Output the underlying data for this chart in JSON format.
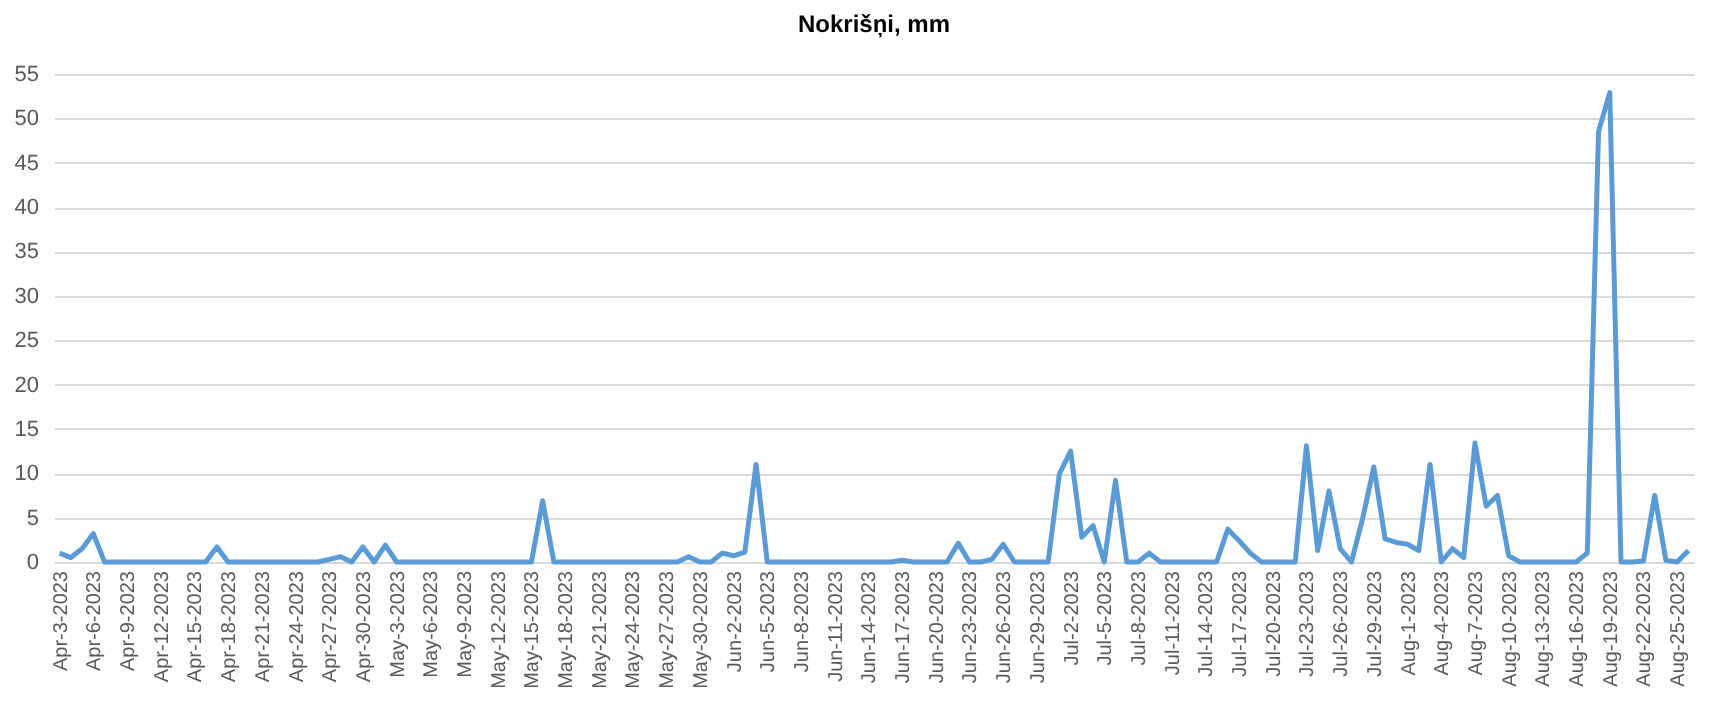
{
  "chart_data": {
    "type": "line",
    "title": "Nokrišņi, mm",
    "categories": [
      "Apr-3-2023",
      null,
      null,
      "Apr-6-2023",
      null,
      null,
      "Apr-9-2023",
      null,
      null,
      "Apr-12-2023",
      null,
      null,
      "Apr-15-2023",
      null,
      null,
      "Apr-18-2023",
      null,
      null,
      "Apr-21-2023",
      null,
      null,
      "Apr-24-2023",
      null,
      null,
      "Apr-27-2023",
      null,
      null,
      "Apr-30-2023",
      null,
      null,
      "May-3-2023",
      null,
      null,
      "May-6-2023",
      null,
      null,
      "May-9-2023",
      null,
      null,
      "May-12-2023",
      null,
      null,
      "May-15-2023",
      null,
      null,
      "May-18-2023",
      null,
      null,
      "May-21-2023",
      null,
      null,
      "May-24-2023",
      null,
      null,
      "May-27-2023",
      null,
      null,
      "May-30-2023",
      null,
      null,
      "Jun-2-2023",
      null,
      null,
      "Jun-5-2023",
      null,
      null,
      "Jun-8-2023",
      null,
      null,
      "Jun-11-2023",
      null,
      null,
      "Jun-14-2023",
      null,
      null,
      "Jun-17-2023",
      null,
      null,
      "Jun-20-2023",
      null,
      null,
      "Jun-23-2023",
      null,
      null,
      "Jun-26-2023",
      null,
      null,
      "Jun-29-2023",
      null,
      null,
      "Jul-2-2023",
      null,
      null,
      "Jul-5-2023",
      null,
      null,
      "Jul-8-2023",
      null,
      null,
      "Jul-11-2023",
      null,
      null,
      "Jul-14-2023",
      null,
      null,
      "Jul-17-2023",
      null,
      null,
      "Jul-20-2023",
      null,
      null,
      "Jul-23-2023",
      null,
      null,
      "Jul-26-2023",
      null,
      null,
      "Jul-29-2023",
      null,
      null,
      "Aug-1-2023",
      null,
      null,
      "Aug-4-2023",
      null,
      null,
      "Aug-7-2023",
      null,
      null,
      "Aug-10-2023",
      null,
      null,
      "Aug-13-2023",
      null,
      null,
      "Aug-16-2023",
      null,
      null,
      "Aug-19-2023",
      null,
      null,
      "Aug-22-2023",
      null,
      null,
      "Aug-25-2023",
      null
    ],
    "series": [
      {
        "color": "#5b9bd5",
        "values": [
          1.0,
          0.5,
          1.5,
          3.2,
          0,
          0,
          0,
          0,
          0,
          0,
          0,
          0,
          0,
          0,
          1.7,
          0,
          0,
          0,
          0,
          0,
          0,
          0,
          0,
          0,
          0.3,
          0.6,
          0,
          1.7,
          0,
          1.9,
          0,
          0,
          0,
          0,
          0,
          0,
          0,
          0,
          0,
          0,
          0,
          0,
          0,
          6.9,
          0,
          0,
          0,
          0,
          0,
          0,
          0,
          0,
          0,
          0,
          0,
          0,
          0.6,
          0,
          0,
          1.0,
          0.7,
          1.1,
          11.0,
          0,
          0,
          0,
          0,
          0,
          0,
          0,
          0,
          0,
          0,
          0,
          0,
          0.2,
          0,
          0,
          0,
          0,
          2.1,
          0,
          0,
          0.3,
          2.0,
          0,
          0,
          0,
          0,
          9.9,
          12.5,
          2.8,
          4.1,
          0,
          9.2,
          0,
          0,
          1.0,
          0,
          0,
          0,
          0,
          0,
          0,
          3.7,
          2.4,
          1.0,
          0,
          0,
          0,
          0,
          13.1,
          1.3,
          8.0,
          1.5,
          0,
          4.9,
          10.7,
          2.6,
          2.2,
          2.0,
          1.3,
          11.0,
          0,
          1.5,
          0.5,
          13.4,
          6.3,
          7.5,
          0.7,
          0,
          0,
          0,
          0,
          0,
          0,
          1.0,
          48.5,
          52.9,
          0,
          0,
          0.1,
          7.5,
          0.2,
          0,
          1.3
        ]
      }
    ],
    "ylim": [
      0,
      55
    ],
    "yticks": [
      0,
      5,
      10,
      15,
      20,
      25,
      30,
      35,
      40,
      45,
      50,
      55
    ],
    "grid": "y"
  }
}
